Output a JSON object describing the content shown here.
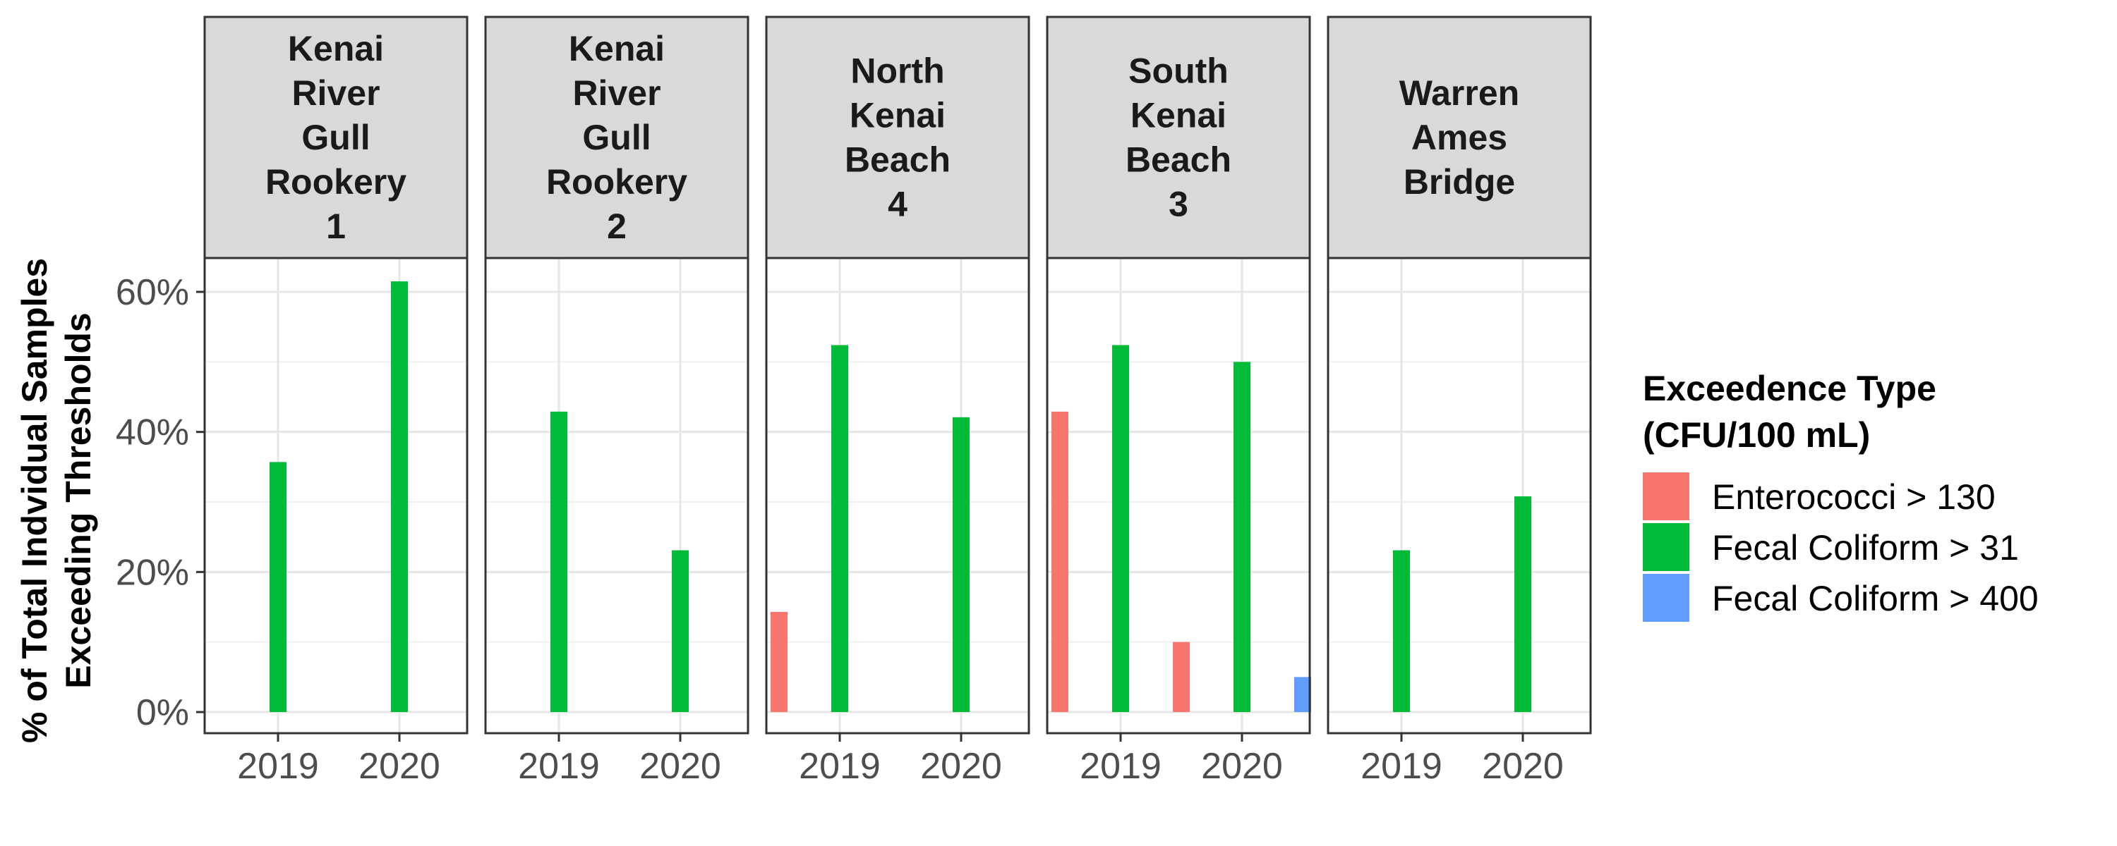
{
  "chart_data": {
    "type": "bar",
    "ylabel_lines": [
      "% of Total Indvidual Samples",
      "Exceeding Thresholds"
    ],
    "y_ticks": [
      "0%",
      "20%",
      "40%",
      "60%"
    ],
    "ylim": [
      0,
      65
    ],
    "categories": [
      "2019",
      "2020"
    ],
    "legend": {
      "title_lines": [
        "Exceedence Type",
        "(CFU/100 mL)"
      ],
      "placement": "right",
      "items": [
        {
          "label": "Enterococci > 130",
          "color": "#F8766D"
        },
        {
          "label": "Fecal Coliform > 31",
          "color": "#00BA38"
        },
        {
          "label": "Fecal Coliform > 400",
          "color": "#619CFF"
        }
      ]
    },
    "series": [
      {
        "name": "Enterococci > 130",
        "color": "#F8766D"
      },
      {
        "name": "Fecal Coliform > 31",
        "color": "#00BA38"
      },
      {
        "name": "Fecal Coliform > 400",
        "color": "#619CFF"
      }
    ],
    "panels": [
      {
        "title_lines": [
          "Kenai",
          "River",
          "Gull",
          "Rookery",
          "1"
        ],
        "bars": [
          {
            "category": "2019",
            "series": "Fecal Coliform > 31",
            "value": 35.7
          },
          {
            "category": "2020",
            "series": "Fecal Coliform > 31",
            "value": 61.5
          }
        ]
      },
      {
        "title_lines": [
          "Kenai",
          "River",
          "Gull",
          "Rookery",
          "2"
        ],
        "bars": [
          {
            "category": "2019",
            "series": "Fecal Coliform > 31",
            "value": 42.9
          },
          {
            "category": "2020",
            "series": "Fecal Coliform > 31",
            "value": 23.1
          }
        ]
      },
      {
        "title_lines": [
          "North",
          "Kenai",
          "Beach",
          "4"
        ],
        "bars": [
          {
            "category": "2019",
            "series": "Enterococci > 130",
            "value": 14.3
          },
          {
            "category": "2019",
            "series": "Fecal Coliform > 31",
            "value": 52.4
          },
          {
            "category": "2020",
            "series": "Fecal Coliform > 31",
            "value": 42.1
          }
        ]
      },
      {
        "title_lines": [
          "South",
          "Kenai",
          "Beach",
          "3"
        ],
        "bars": [
          {
            "category": "2019",
            "series": "Enterococci > 130",
            "value": 42.9
          },
          {
            "category": "2019",
            "series": "Fecal Coliform > 31",
            "value": 52.4
          },
          {
            "category": "2019",
            "series": "Fecal Coliform > 400",
            "value": 4.8
          },
          {
            "category": "2020",
            "series": "Enterococci > 130",
            "value": 10.0
          },
          {
            "category": "2020",
            "series": "Fecal Coliform > 31",
            "value": 50.0
          },
          {
            "category": "2020",
            "series": "Fecal Coliform > 400",
            "value": 5.0
          }
        ]
      },
      {
        "title_lines": [
          "Warren",
          "Ames",
          "Bridge"
        ],
        "bars": [
          {
            "category": "2019",
            "series": "Fecal Coliform > 31",
            "value": 23.1
          },
          {
            "category": "2020",
            "series": "Fecal Coliform > 31",
            "value": 30.8
          }
        ]
      }
    ]
  }
}
